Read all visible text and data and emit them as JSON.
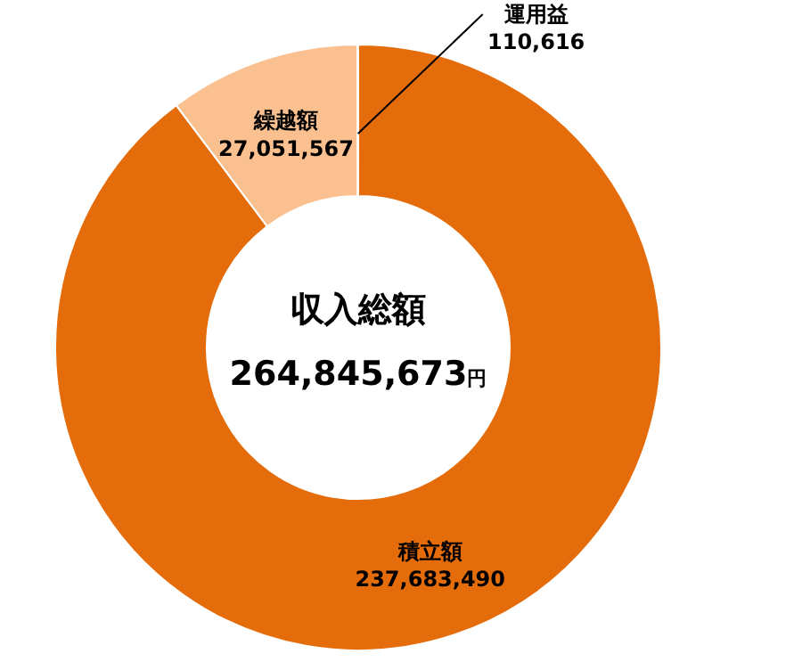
{
  "chart_data": {
    "type": "donut",
    "categories": [
      "積立額",
      "繰越額",
      "運用益"
    ],
    "values": [
      237683490,
      27051567,
      110616
    ],
    "colors": [
      "#e46c0a",
      "#fac090",
      "#fde9d9"
    ],
    "value_labels": [
      "237,683,490",
      "27,051,567",
      "110,616"
    ],
    "annotations": [
      "収入総額",
      "264,845,673円"
    ]
  }
}
